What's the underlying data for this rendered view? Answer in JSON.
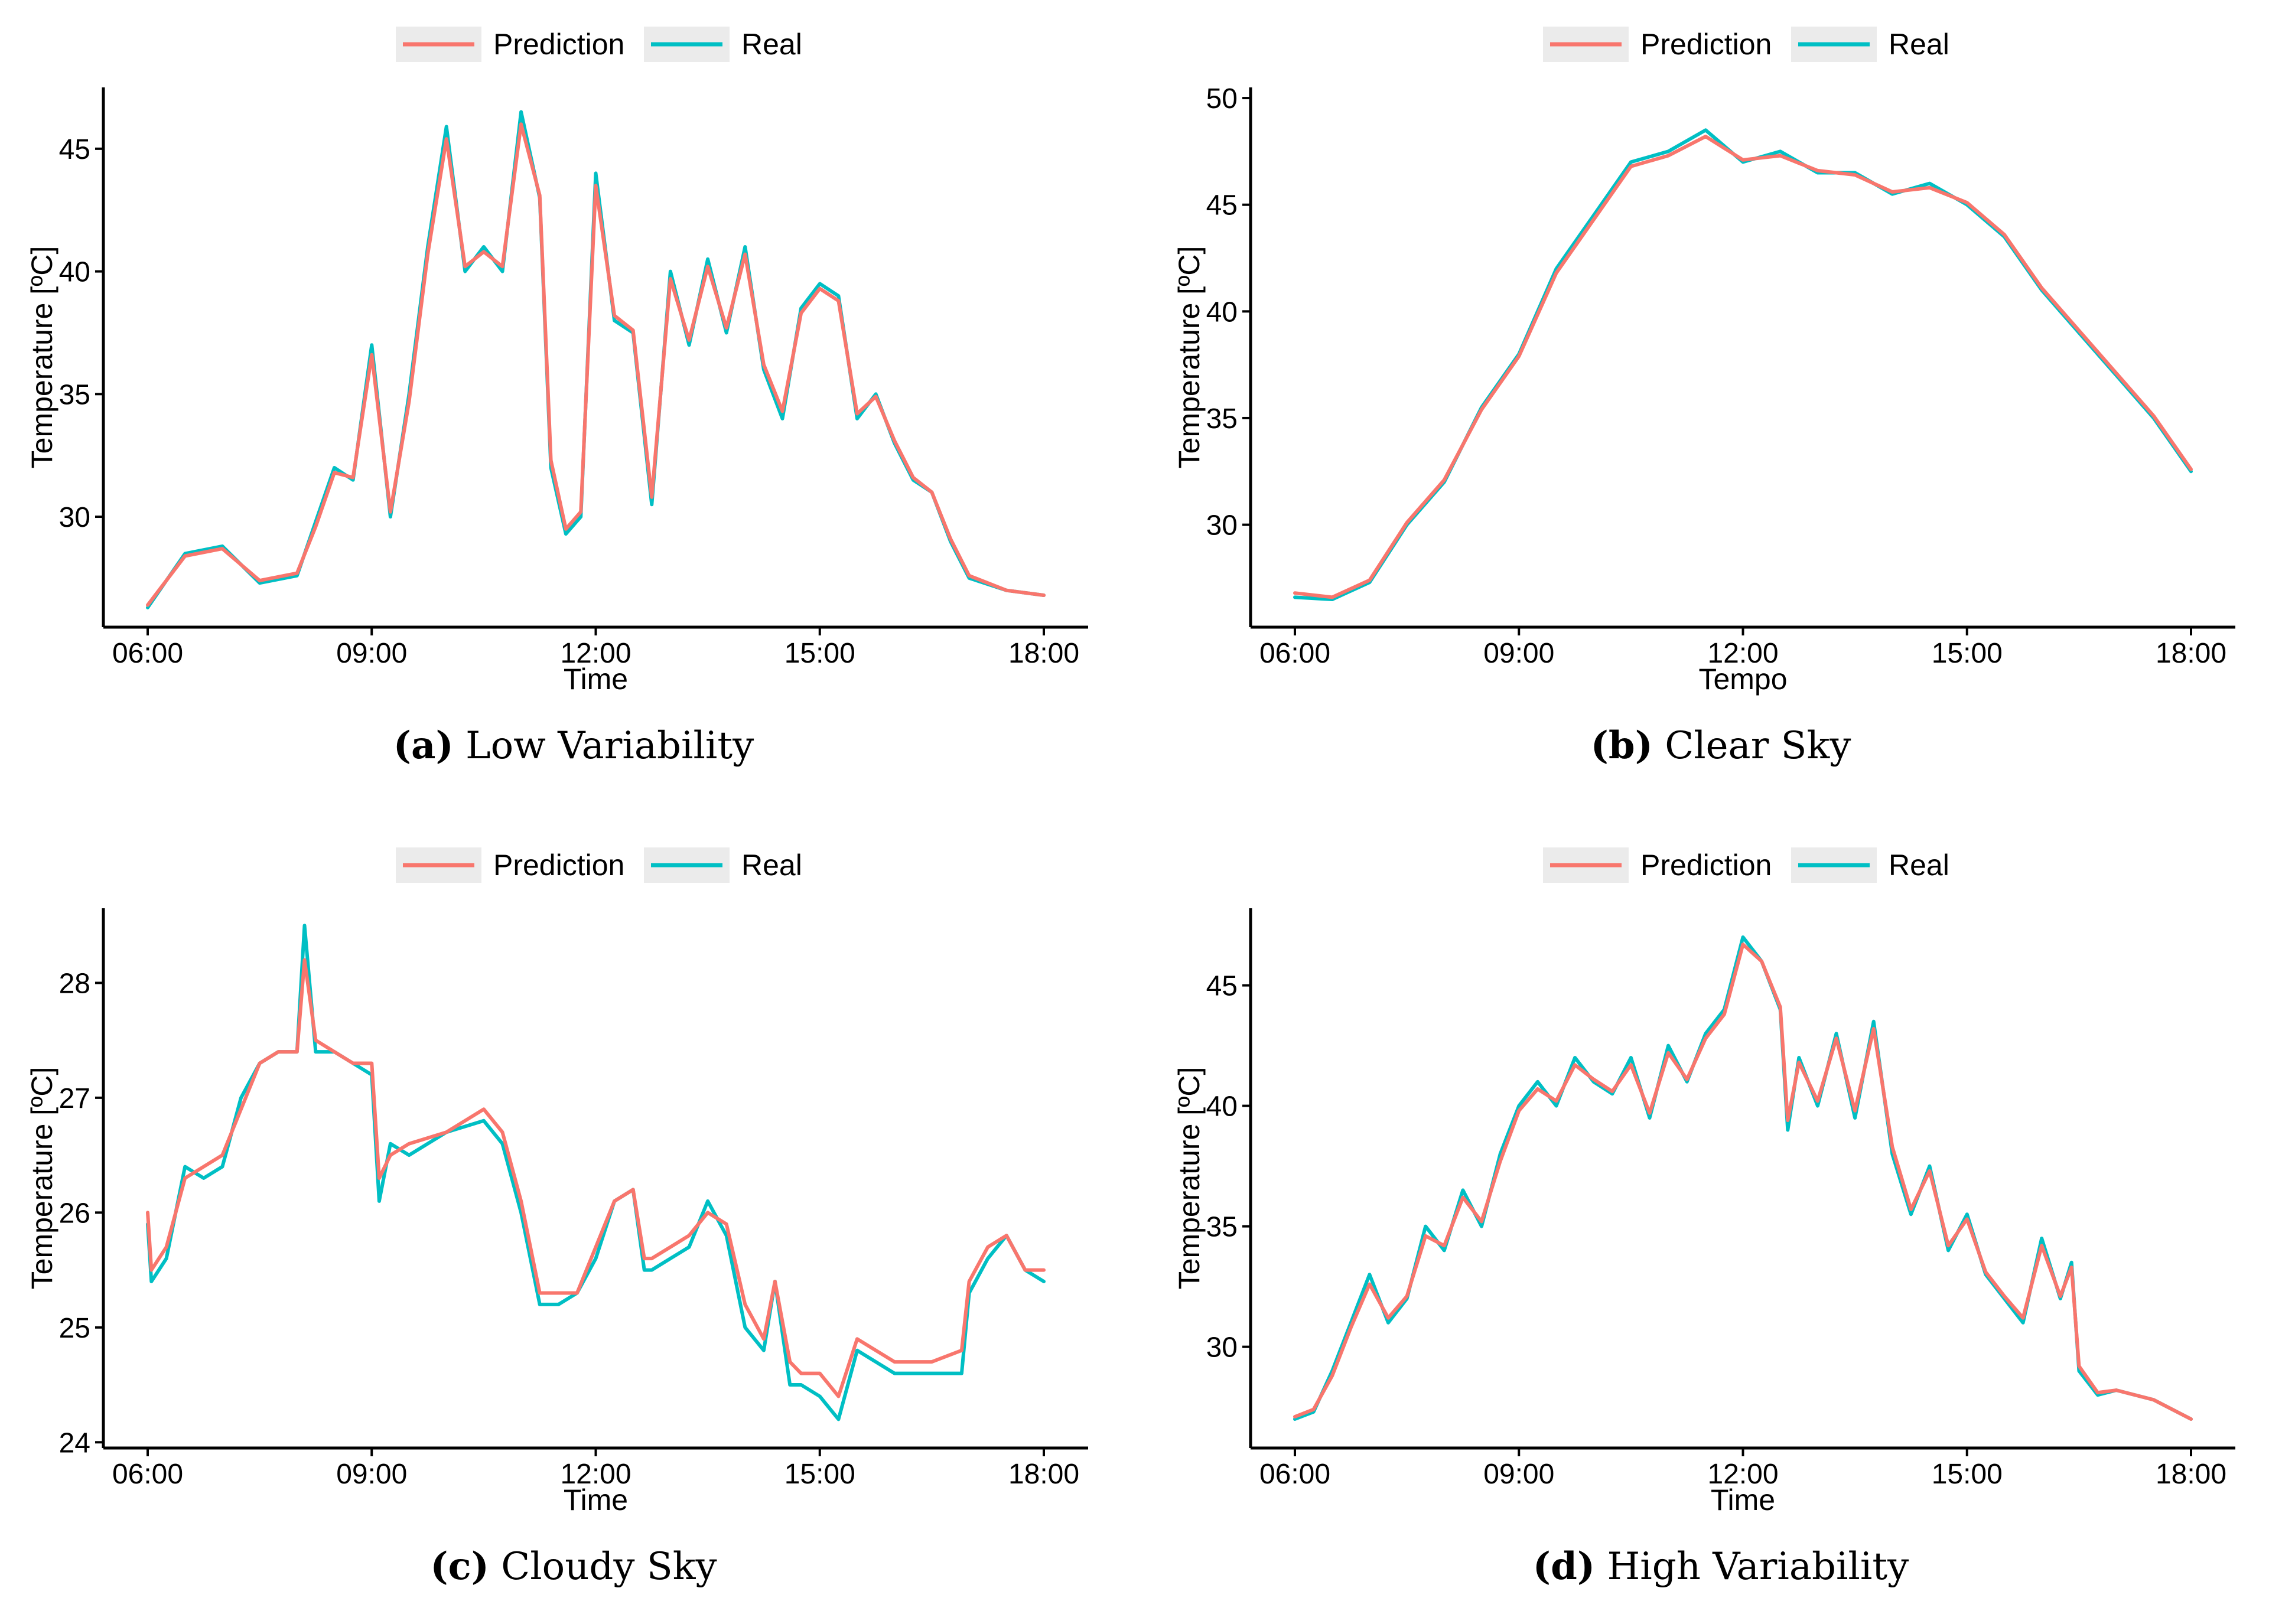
{
  "colors": {
    "prediction": "#F8766D",
    "real": "#00BFC4",
    "legend_bg": "#EBEBEB",
    "axis": "#000000"
  },
  "chart_data": [
    {
      "type": "line",
      "label": "(a)",
      "title": "Low Variability",
      "xlabel": "Time",
      "ylabel": "Temperature [ºC]",
      "xlim": [
        6,
        18
      ],
      "ylim": [
        25.5,
        47.5
      ],
      "xticks": [
        6,
        9,
        12,
        15,
        18
      ],
      "xtick_labels": [
        "06:00",
        "09:00",
        "12:00",
        "15:00",
        "18:00"
      ],
      "yticks": [
        30,
        35,
        40,
        45
      ],
      "legend": [
        "Prediction",
        "Real"
      ],
      "x": [
        6.0,
        6.5,
        7.0,
        7.5,
        8.0,
        8.25,
        8.5,
        8.75,
        9.0,
        9.25,
        9.5,
        9.75,
        10.0,
        10.25,
        10.5,
        10.75,
        11.0,
        11.25,
        11.4,
        11.6,
        11.8,
        12.0,
        12.25,
        12.5,
        12.75,
        13.0,
        13.25,
        13.5,
        13.75,
        14.0,
        14.25,
        14.5,
        14.75,
        15.0,
        15.25,
        15.5,
        15.75,
        16.0,
        16.25,
        16.5,
        16.75,
        17.0,
        17.5,
        18.0
      ],
      "series": [
        {
          "name": "Real",
          "values": [
            26.3,
            28.5,
            28.8,
            27.3,
            27.6,
            29.8,
            32.0,
            31.5,
            37.0,
            30.0,
            35.0,
            41.0,
            45.9,
            40.0,
            41.0,
            40.0,
            46.5,
            43.0,
            32.0,
            29.3,
            30.0,
            44.0,
            38.0,
            37.5,
            30.5,
            40.0,
            37.0,
            40.5,
            37.5,
            41.0,
            36.0,
            34.0,
            38.5,
            39.5,
            39.0,
            34.0,
            35.0,
            33.0,
            31.5,
            31.0,
            29.0,
            27.5,
            27.0,
            26.8
          ]
        },
        {
          "name": "Prediction",
          "values": [
            26.4,
            28.4,
            28.7,
            27.4,
            27.7,
            29.6,
            31.8,
            31.6,
            36.6,
            30.2,
            34.7,
            40.7,
            45.4,
            40.2,
            40.8,
            40.2,
            46.0,
            43.1,
            32.3,
            29.5,
            30.2,
            43.5,
            38.2,
            37.6,
            30.8,
            39.7,
            37.2,
            40.2,
            37.7,
            40.7,
            36.2,
            34.3,
            38.3,
            39.3,
            38.8,
            34.2,
            34.9,
            33.1,
            31.6,
            31.0,
            29.1,
            27.6,
            27.0,
            26.8
          ]
        }
      ]
    },
    {
      "type": "line",
      "label": "(b)",
      "title": "Clear Sky",
      "xlabel": "Tempo",
      "ylabel": "Temperature [ºC]",
      "xlim": [
        6,
        18
      ],
      "ylim": [
        25.2,
        50.5
      ],
      "xticks": [
        6,
        9,
        12,
        15,
        18
      ],
      "xtick_labels": [
        "06:00",
        "09:00",
        "12:00",
        "15:00",
        "18:00"
      ],
      "yticks": [
        30,
        35,
        40,
        45,
        50
      ],
      "legend": [
        "Prediction",
        "Real"
      ],
      "x": [
        6.0,
        6.5,
        7.0,
        7.5,
        8.0,
        8.5,
        9.0,
        9.5,
        10.0,
        10.5,
        11.0,
        11.5,
        12.0,
        12.5,
        13.0,
        13.5,
        14.0,
        14.5,
        15.0,
        15.5,
        16.0,
        16.5,
        17.0,
        17.5,
        18.0
      ],
      "series": [
        {
          "name": "Real",
          "values": [
            26.6,
            26.5,
            27.3,
            30.0,
            32.0,
            35.5,
            38.0,
            42.0,
            44.5,
            47.0,
            47.5,
            48.5,
            47.0,
            47.5,
            46.5,
            46.5,
            45.5,
            46.0,
            45.0,
            43.5,
            41.0,
            39.0,
            37.0,
            35.0,
            32.5
          ]
        },
        {
          "name": "Prediction",
          "values": [
            26.8,
            26.6,
            27.4,
            30.1,
            32.1,
            35.4,
            37.9,
            41.8,
            44.3,
            46.8,
            47.3,
            48.2,
            47.1,
            47.3,
            46.6,
            46.4,
            45.6,
            45.8,
            45.1,
            43.6,
            41.1,
            39.1,
            37.1,
            35.1,
            32.6
          ]
        }
      ]
    },
    {
      "type": "line",
      "label": "(c)",
      "title": "Cloudy Sky",
      "xlabel": "Time",
      "ylabel": "Temperature [ºC]",
      "xlim": [
        6,
        18
      ],
      "ylim": [
        23.95,
        28.65
      ],
      "xticks": [
        6,
        9,
        12,
        15,
        18
      ],
      "xtick_labels": [
        "06:00",
        "09:00",
        "12:00",
        "15:00",
        "18:00"
      ],
      "yticks": [
        24,
        25,
        26,
        27,
        28
      ],
      "legend": [
        "Prediction",
        "Real"
      ],
      "x": [
        6.0,
        6.05,
        6.25,
        6.5,
        6.75,
        7.0,
        7.25,
        7.5,
        7.75,
        8.0,
        8.1,
        8.25,
        8.5,
        8.75,
        9.0,
        9.1,
        9.25,
        9.5,
        10.0,
        10.5,
        10.75,
        11.0,
        11.25,
        11.5,
        11.75,
        12.0,
        12.25,
        12.5,
        12.65,
        12.75,
        13.0,
        13.25,
        13.5,
        13.75,
        14.0,
        14.25,
        14.4,
        14.6,
        14.75,
        15.0,
        15.25,
        15.5,
        16.0,
        16.5,
        16.9,
        17.0,
        17.25,
        17.5,
        17.75,
        18.0
      ],
      "series": [
        {
          "name": "Real",
          "values": [
            25.9,
            25.4,
            25.6,
            26.4,
            26.3,
            26.4,
            27.0,
            27.3,
            27.4,
            27.4,
            28.5,
            27.4,
            27.4,
            27.3,
            27.2,
            26.1,
            26.6,
            26.5,
            26.7,
            26.8,
            26.6,
            26.0,
            25.2,
            25.2,
            25.3,
            25.6,
            26.1,
            26.2,
            25.5,
            25.5,
            25.6,
            25.7,
            26.1,
            25.8,
            25.0,
            24.8,
            25.4,
            24.5,
            24.5,
            24.4,
            24.2,
            24.8,
            24.6,
            24.6,
            24.6,
            25.3,
            25.6,
            25.8,
            25.5,
            25.4
          ]
        },
        {
          "name": "Prediction",
          "values": [
            26.0,
            25.5,
            25.7,
            26.3,
            26.4,
            26.5,
            26.9,
            27.3,
            27.4,
            27.4,
            28.2,
            27.5,
            27.4,
            27.3,
            27.3,
            26.3,
            26.5,
            26.6,
            26.7,
            26.9,
            26.7,
            26.1,
            25.3,
            25.3,
            25.3,
            25.7,
            26.1,
            26.2,
            25.6,
            25.6,
            25.7,
            25.8,
            26.0,
            25.9,
            25.2,
            24.9,
            25.4,
            24.7,
            24.6,
            24.6,
            24.4,
            24.9,
            24.7,
            24.7,
            24.8,
            25.4,
            25.7,
            25.8,
            25.5,
            25.5
          ]
        }
      ]
    },
    {
      "type": "line",
      "label": "(d)",
      "title": "High Variability",
      "xlabel": "Time",
      "ylabel": "Temperature [ºC]",
      "xlim": [
        6,
        18
      ],
      "ylim": [
        25.8,
        48.2
      ],
      "xticks": [
        6,
        9,
        12,
        15,
        18
      ],
      "xtick_labels": [
        "06:00",
        "09:00",
        "12:00",
        "15:00",
        "18:00"
      ],
      "yticks": [
        30,
        35,
        40,
        45
      ],
      "legend": [
        "Prediction",
        "Real"
      ],
      "x": [
        6.0,
        6.25,
        6.5,
        6.75,
        7.0,
        7.25,
        7.5,
        7.75,
        8.0,
        8.25,
        8.5,
        8.75,
        9.0,
        9.25,
        9.5,
        9.75,
        10.0,
        10.25,
        10.5,
        10.75,
        11.0,
        11.25,
        11.5,
        11.75,
        12.0,
        12.25,
        12.5,
        12.6,
        12.75,
        13.0,
        13.25,
        13.5,
        13.75,
        14.0,
        14.25,
        14.5,
        14.75,
        15.0,
        15.25,
        15.5,
        15.75,
        16.0,
        16.25,
        16.4,
        16.5,
        16.75,
        17.0,
        17.5,
        18.0
      ],
      "series": [
        {
          "name": "Real",
          "values": [
            27.0,
            27.3,
            29.0,
            31.0,
            33.0,
            31.0,
            32.0,
            35.0,
            34.0,
            36.5,
            35.0,
            38.0,
            40.0,
            41.0,
            40.0,
            42.0,
            41.0,
            40.5,
            42.0,
            39.5,
            42.5,
            41.0,
            43.0,
            44.0,
            47.0,
            46.0,
            44.0,
            39.0,
            42.0,
            40.0,
            43.0,
            39.5,
            43.5,
            38.0,
            35.5,
            37.5,
            34.0,
            35.5,
            33.0,
            32.0,
            31.0,
            34.5,
            32.0,
            33.5,
            29.0,
            28.0,
            28.2,
            27.8,
            27.0
          ]
        },
        {
          "name": "Prediction",
          "values": [
            27.1,
            27.4,
            28.8,
            30.8,
            32.6,
            31.2,
            32.1,
            34.6,
            34.2,
            36.2,
            35.2,
            37.7,
            39.8,
            40.7,
            40.2,
            41.7,
            41.1,
            40.6,
            41.7,
            39.7,
            42.2,
            41.1,
            42.8,
            43.8,
            46.7,
            46.0,
            44.1,
            39.4,
            41.8,
            40.2,
            42.8,
            39.8,
            43.2,
            38.3,
            35.7,
            37.3,
            34.2,
            35.3,
            33.1,
            32.1,
            31.2,
            34.2,
            32.1,
            33.3,
            29.2,
            28.1,
            28.2,
            27.8,
            27.0
          ]
        }
      ]
    }
  ]
}
